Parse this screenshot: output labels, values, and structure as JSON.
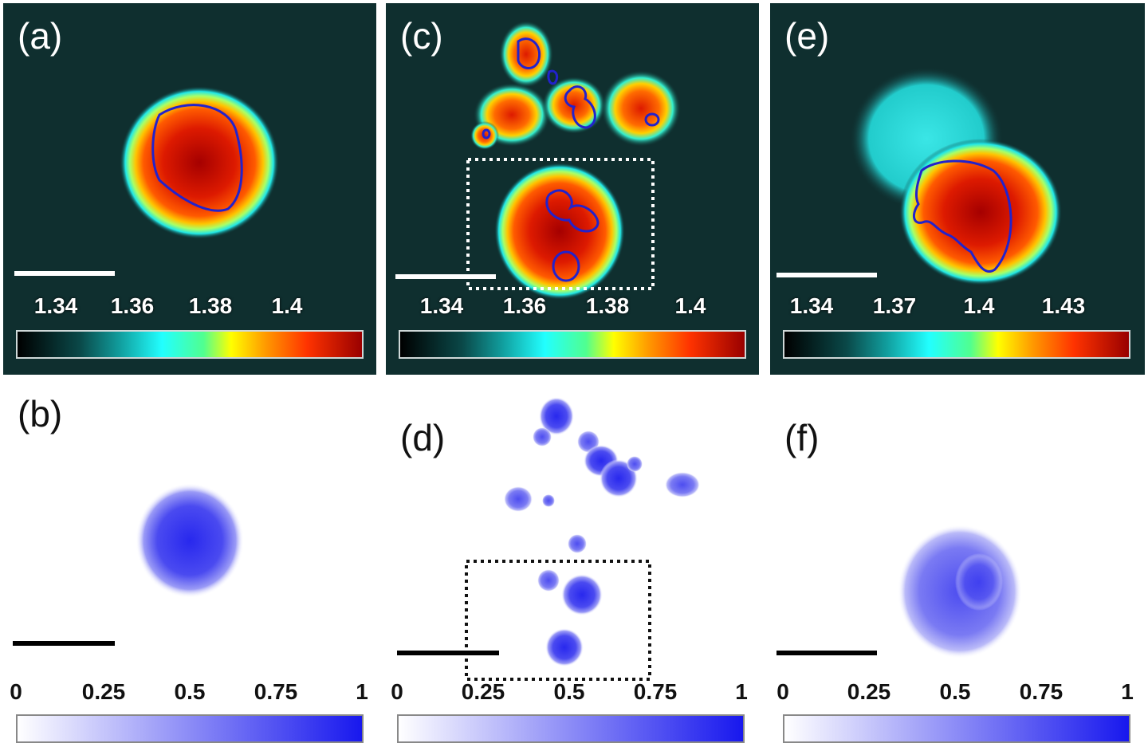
{
  "figure": {
    "panels": [
      {
        "id": "a",
        "label": "(a)",
        "kind": "refractive-index-map",
        "ticks": [
          "1.34",
          "1.36",
          "1.38",
          "1.4"
        ],
        "colormap": "jet-like on dark background"
      },
      {
        "id": "b",
        "label": "(b)",
        "kind": "fluorescence-map",
        "ticks": [
          "0",
          "0.25",
          "0.5",
          "0.75",
          "1"
        ],
        "colormap": "white-to-blue"
      },
      {
        "id": "c",
        "label": "(c)",
        "kind": "refractive-index-map",
        "ticks": [
          "1.34",
          "1.36",
          "1.38",
          "1.4"
        ],
        "colormap": "jet-like on dark background",
        "has_roi_box": true
      },
      {
        "id": "d",
        "label": "(d)",
        "kind": "fluorescence-map",
        "ticks": [
          "0",
          "0.25",
          "0.5",
          "0.75",
          "1"
        ],
        "colormap": "white-to-blue",
        "has_roi_box": true
      },
      {
        "id": "e",
        "label": "(e)",
        "kind": "refractive-index-map",
        "ticks": [
          "1.34",
          "1.37",
          "1.4",
          "1.43"
        ],
        "colormap": "jet-like on dark background"
      },
      {
        "id": "f",
        "label": "(f)",
        "kind": "fluorescence-map",
        "ticks": [
          "0",
          "0.25",
          "0.5",
          "0.75",
          "1"
        ],
        "colormap": "white-to-blue"
      }
    ],
    "colors": {
      "ri_background": "#0f2f2f",
      "contour": "#2222cc",
      "fluor_blue": "#1818ee",
      "scalebar_light": "#ffffff",
      "scalebar_dark": "#000000",
      "roi_light": "#ffffff",
      "roi_dark": "#111111"
    }
  }
}
